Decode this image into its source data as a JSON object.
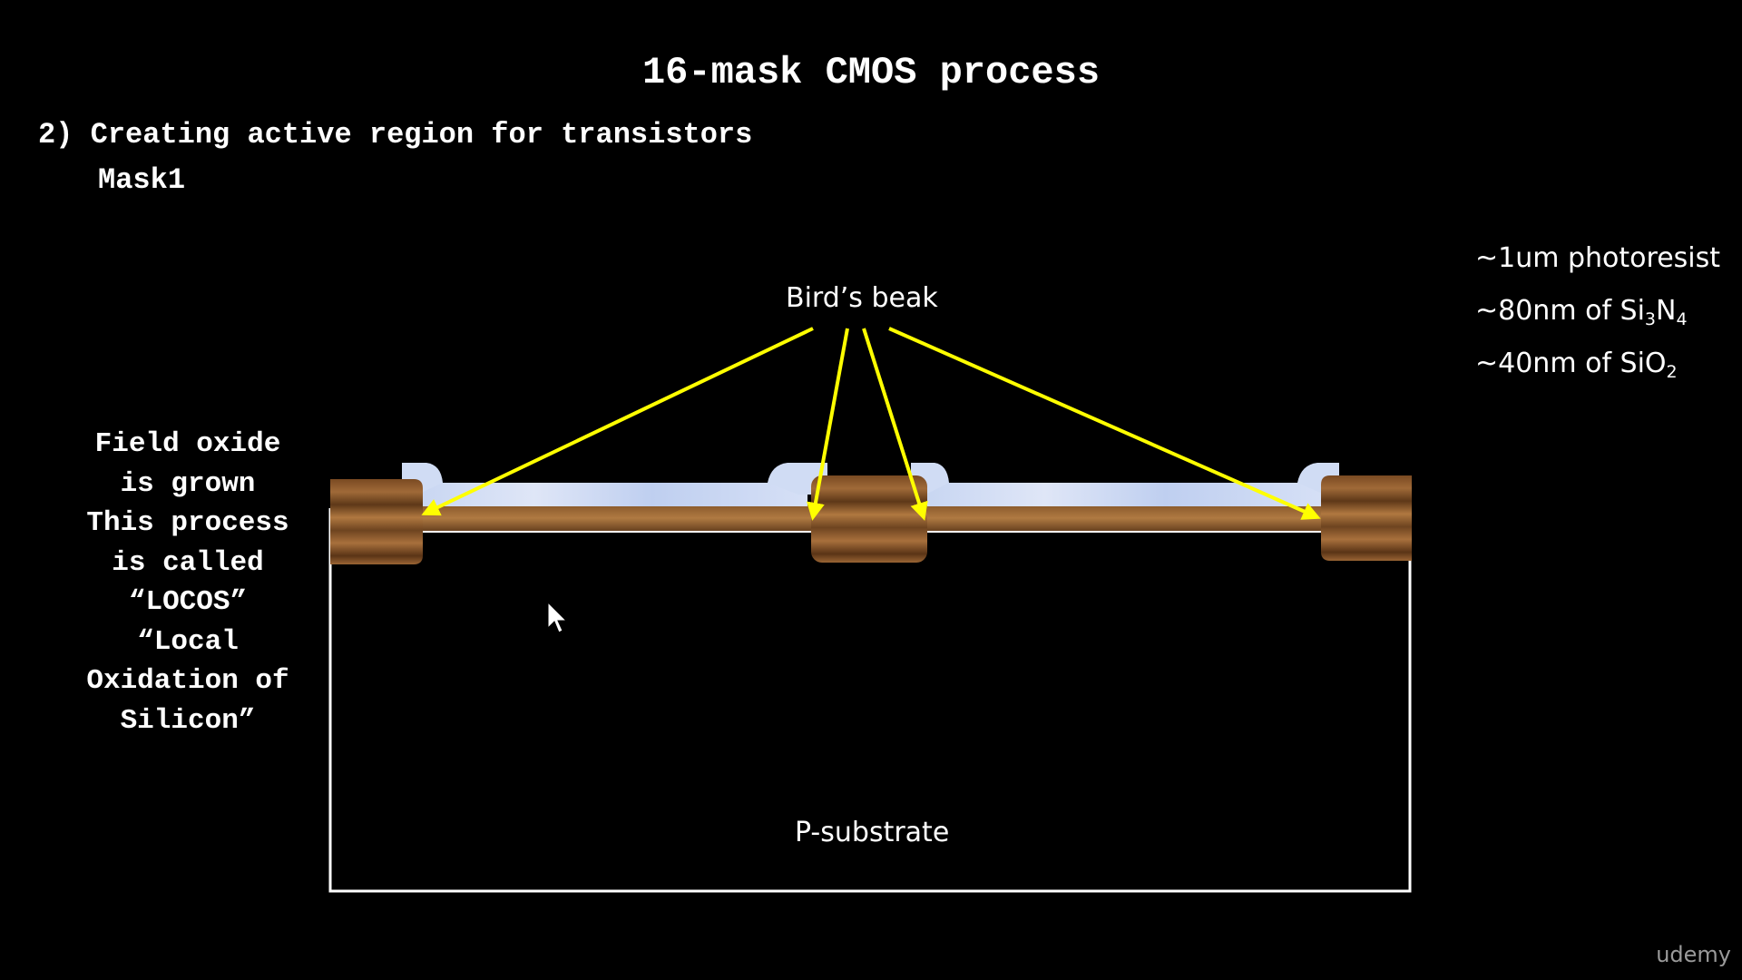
{
  "title": "16-mask CMOS process",
  "step": "2) Creating active region for transistors",
  "mask": "Mask1",
  "side_note": {
    "lines": [
      "Field oxide",
      "is grown",
      "This process",
      "is called",
      "“LOCOS”",
      "“Local",
      "Oxidation of",
      "Silicon”"
    ]
  },
  "legend": {
    "photoresist": "~1um photoresist",
    "nitride_prefix": "~80nm of Si",
    "nitride_sub1": "3",
    "nitride_mid": "N",
    "nitride_sub2": "4",
    "oxide_prefix": "~40nm of SiO",
    "oxide_sub": "2"
  },
  "labels": {
    "birds_beak": "Bird’s beak",
    "substrate": "P-substrate"
  },
  "watermark": "udemy",
  "colors": {
    "background": "#000000",
    "arrow": "#ffff00",
    "field_oxide": "#8b5a2b",
    "nitride": "#c9d8f0",
    "substrate_outline": "#ffffff"
  },
  "cursor": "arrow-cursor-icon"
}
